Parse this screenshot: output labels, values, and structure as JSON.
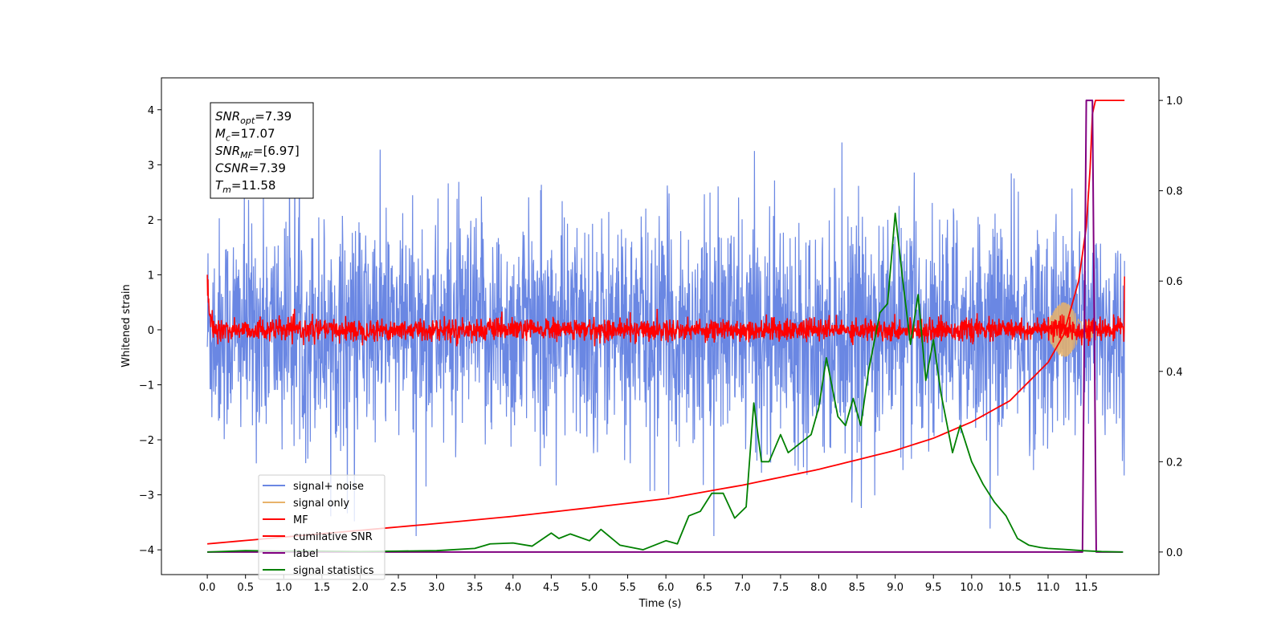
{
  "chart_data": {
    "type": "line",
    "title": "",
    "xlabel": "Time (s)",
    "ylabel": "Whitened strain",
    "ylabel_right": "",
    "xlim": [
      -0.6,
      12.45
    ],
    "ylim": [
      -4.45,
      4.58
    ],
    "ylim_right": [
      -0.05,
      1.05
    ],
    "x_ticks": [
      0.0,
      0.5,
      1.0,
      1.5,
      2.0,
      2.5,
      3.0,
      3.5,
      4.0,
      4.5,
      5.0,
      5.5,
      6.0,
      6.5,
      7.0,
      7.5,
      8.0,
      8.5,
      9.0,
      9.5,
      10.0,
      10.5,
      11.0,
      11.5
    ],
    "x_tick_labels": [
      "0.0",
      "0.5",
      "1.0",
      "1.5",
      "2.0",
      "2.5",
      "3.0",
      "3.5",
      "4.0",
      "4.5",
      "5.0",
      "5.5",
      "6.0",
      "6.5",
      "7.0",
      "7.5",
      "8.0",
      "8.5",
      "9.0",
      "9.5",
      "10.0",
      "10.5",
      "11.0",
      "11.5"
    ],
    "y_ticks": [
      -4,
      -3,
      -2,
      -1,
      0,
      1,
      2,
      3,
      4
    ],
    "y_tick_labels": [
      "−4",
      "−3",
      "−2",
      "−1",
      "0",
      "1",
      "2",
      "3",
      "4"
    ],
    "y_right_ticks": [
      0.0,
      0.2,
      0.4,
      0.6,
      0.8,
      1.0
    ],
    "y_right_tick_labels": [
      "0.0",
      "0.2",
      "0.4",
      "0.6",
      "0.8",
      "1.0"
    ],
    "grid": false,
    "legend_position": "lower-left",
    "series": [
      {
        "name": "signal+ noise",
        "axis": "left",
        "color": "#6a87e3",
        "style": "dense-noise",
        "x_range": [
          0.0,
          12.0
        ],
        "envelope_typical": [
          -2.0,
          2.0
        ],
        "peak_max": 3.83,
        "peak_min": -3.75
      },
      {
        "name": "signal only",
        "axis": "left",
        "color": "#e8b36a",
        "style": "chirp",
        "x_range": [
          11.0,
          11.58
        ],
        "amplitude_max": 0.5
      },
      {
        "name": "MF",
        "axis": "left",
        "color": "#ff0000",
        "style": "dense-noise",
        "x_range": [
          0.0,
          12.0
        ],
        "envelope_typical": [
          -0.22,
          0.22
        ],
        "start_value": 1.0,
        "end_value": 0.97
      },
      {
        "name": "cumilative SNR",
        "axis": "right",
        "color": "#ff0000",
        "x": [
          0.0,
          1.0,
          2.0,
          3.0,
          4.0,
          5.0,
          6.0,
          7.0,
          8.0,
          9.0,
          9.5,
          10.0,
          10.5,
          11.0,
          11.2,
          11.4,
          11.5,
          11.55,
          11.58,
          11.62,
          12.0
        ],
        "values": [
          0.018,
          0.033,
          0.048,
          0.063,
          0.079,
          0.098,
          0.118,
          0.148,
          0.183,
          0.225,
          0.252,
          0.288,
          0.335,
          0.42,
          0.48,
          0.6,
          0.72,
          0.85,
          0.97,
          1.0,
          1.0
        ]
      },
      {
        "name": "label",
        "axis": "right",
        "color": "#800080",
        "x": [
          0.0,
          11.45,
          11.5,
          11.58,
          11.63,
          11.68,
          11.98
        ],
        "values": [
          0.0,
          0.0,
          1.0,
          1.0,
          0.0,
          0.0,
          0.0
        ]
      },
      {
        "name": "signal statistics",
        "axis": "right",
        "color": "#008000",
        "x": [
          0.0,
          0.5,
          1.0,
          1.5,
          2.0,
          2.5,
          3.0,
          3.5,
          3.7,
          4.0,
          4.25,
          4.5,
          4.6,
          4.75,
          5.0,
          5.15,
          5.4,
          5.7,
          6.0,
          6.15,
          6.3,
          6.45,
          6.6,
          6.75,
          6.9,
          7.05,
          7.15,
          7.25,
          7.35,
          7.5,
          7.6,
          7.75,
          7.9,
          8.0,
          8.1,
          8.25,
          8.35,
          8.45,
          8.55,
          8.65,
          8.8,
          8.9,
          9.0,
          9.1,
          9.2,
          9.3,
          9.4,
          9.5,
          9.6,
          9.75,
          9.85,
          10.0,
          10.15,
          10.3,
          10.45,
          10.6,
          10.75,
          10.9,
          11.0,
          11.2,
          11.45,
          11.7,
          11.98
        ],
        "values": [
          0.0,
          0.003,
          0.002,
          0.002,
          0.001,
          0.002,
          0.003,
          0.008,
          0.018,
          0.02,
          0.013,
          0.042,
          0.03,
          0.04,
          0.025,
          0.05,
          0.015,
          0.005,
          0.025,
          0.018,
          0.08,
          0.09,
          0.13,
          0.13,
          0.075,
          0.1,
          0.33,
          0.2,
          0.2,
          0.26,
          0.22,
          0.24,
          0.26,
          0.32,
          0.43,
          0.3,
          0.28,
          0.34,
          0.28,
          0.4,
          0.53,
          0.55,
          0.75,
          0.6,
          0.46,
          0.57,
          0.38,
          0.47,
          0.35,
          0.22,
          0.28,
          0.2,
          0.15,
          0.11,
          0.08,
          0.03,
          0.015,
          0.01,
          0.008,
          0.006,
          0.003,
          0.001,
          0.0
        ]
      }
    ],
    "annotation": {
      "lines": [
        {
          "base": "SNR",
          "sub": "opt",
          "rest": "=7.39"
        },
        {
          "base": "M",
          "sub": "c",
          "rest": "=17.07"
        },
        {
          "base": "SNR",
          "sub": "MF",
          "rest": "=[6.97]"
        },
        {
          "base": "CSNR",
          "sub": "",
          "rest": "=7.39"
        },
        {
          "base": "T",
          "sub": "m",
          "rest": "=11.58"
        }
      ]
    },
    "legend": [
      {
        "label": "signal+ noise",
        "color": "#6a87e3"
      },
      {
        "label": "signal only",
        "color": "#e8b36a"
      },
      {
        "label": "MF",
        "color": "#ff0000"
      },
      {
        "label": "cumilative SNR",
        "color": "#ff0000"
      },
      {
        "label": "label",
        "color": "#800080"
      },
      {
        "label": "signal statistics",
        "color": "#008000"
      }
    ]
  }
}
